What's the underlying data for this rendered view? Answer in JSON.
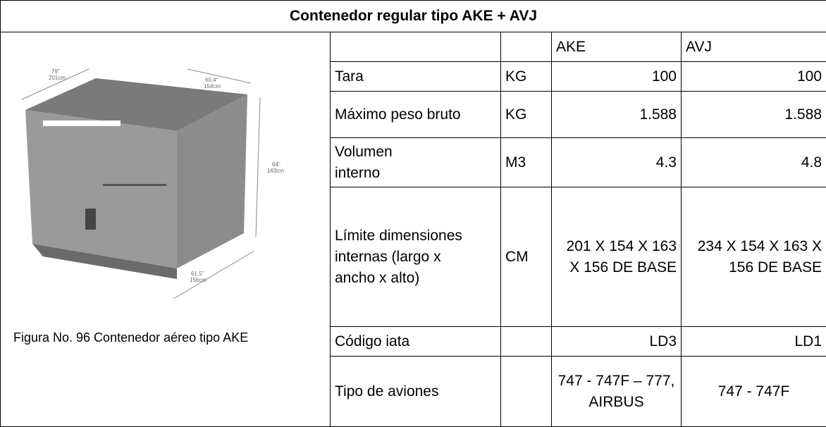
{
  "title": "Contenedor regular tipo AKE + AVJ",
  "figure": {
    "caption": "Figura No. 96 Contenedor aéreo tipo AKE",
    "dimensions": [
      "79\"",
      "201cm",
      "60.4\"",
      "154cm",
      "64\"",
      "163cm",
      "61.5\"",
      "156cm"
    ]
  },
  "table": {
    "columns": [
      "AKE",
      "AVJ"
    ],
    "rows": [
      {
        "label": "Tara",
        "unit": "KG",
        "ake": "100",
        "avj": "100"
      },
      {
        "label": "Máximo peso bruto",
        "unit": "KG",
        "ake": "1.588",
        "avj": "1.588"
      },
      {
        "label": "Volumen interno",
        "unit": "M3",
        "ake": "4.3",
        "avj": "4.8"
      },
      {
        "label": "Límite dimensiones internas (largo x ancho x alto)",
        "unit": "CM",
        "ake": "201 X 154 X 163 X 156 DE BASE",
        "avj": "234 X 154 X 163 X 156 DE BASE"
      },
      {
        "label": "Código iata",
        "ake": "LD3",
        "avj": "LD1"
      },
      {
        "label": "Tipo de aviones",
        "ake": "747 - 747F – 777, AIRBUS",
        "avj": "747 - 747F"
      }
    ]
  }
}
